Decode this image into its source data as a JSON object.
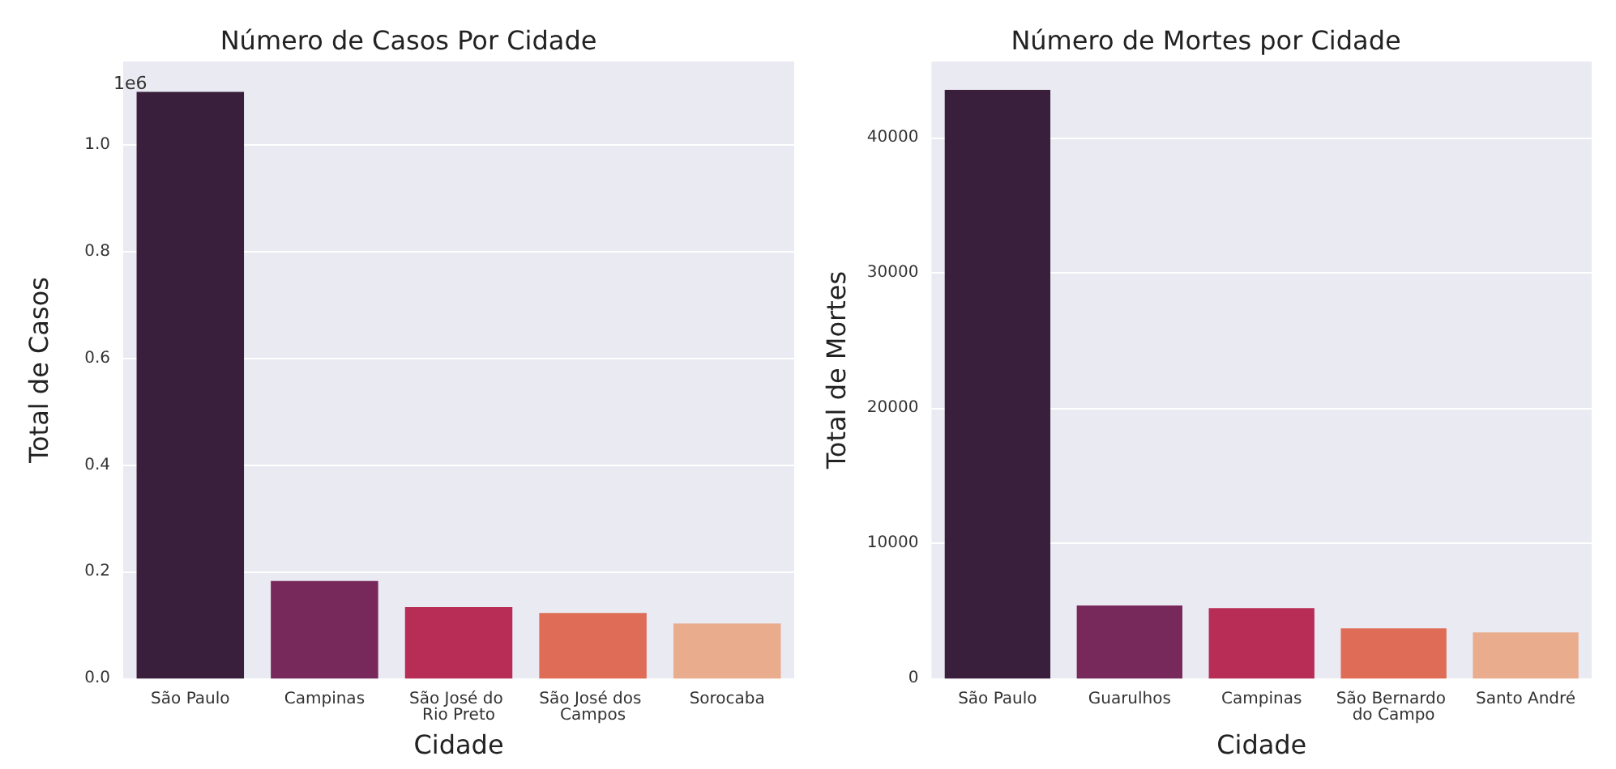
{
  "chart_data": [
    {
      "type": "bar",
      "title": "Número de Casos Por Cidade",
      "xlabel": "Cidade",
      "ylabel": "Total de Casos",
      "annotations": [
        "1e6"
      ],
      "categories": [
        "São Paulo",
        "Campinas",
        "São José do Rio Preto",
        "São José dos Campos",
        "Sorocaba"
      ],
      "values": [
        1.1,
        0.183,
        0.134,
        0.123,
        0.103
      ],
      "colors": [
        "#3a1f3c",
        "#76295a",
        "#b72d55",
        "#df6c57",
        "#e9ac8d"
      ],
      "ylim": [
        0,
        1.157
      ],
      "yticks": [
        {
          "value": 0,
          "label": "0.0"
        },
        {
          "value": 0.2,
          "label": "0.2"
        },
        {
          "value": 0.4,
          "label": "0.4"
        },
        {
          "value": 0.6,
          "label": "0.6"
        },
        {
          "value": 0.8,
          "label": "0.8"
        },
        {
          "value": 1.0,
          "label": "1.0"
        }
      ],
      "grid": "y"
    },
    {
      "type": "bar",
      "title": "Número de Mortes por Cidade",
      "xlabel": "Cidade",
      "ylabel": "Total de Mortes",
      "categories": [
        "São Paulo",
        "Guarulhos",
        "Campinas",
        "São Bernardo do Campo",
        "Santo André"
      ],
      "values": [
        43500,
        5400,
        5200,
        3700,
        3400
      ],
      "colors": [
        "#3a1f3c",
        "#76295a",
        "#b72d55",
        "#df6c57",
        "#e9ac8d"
      ],
      "ylim": [
        0,
        45600
      ],
      "yticks": [
        0,
        10000,
        20000,
        30000,
        40000
      ],
      "grid": "y"
    }
  ]
}
